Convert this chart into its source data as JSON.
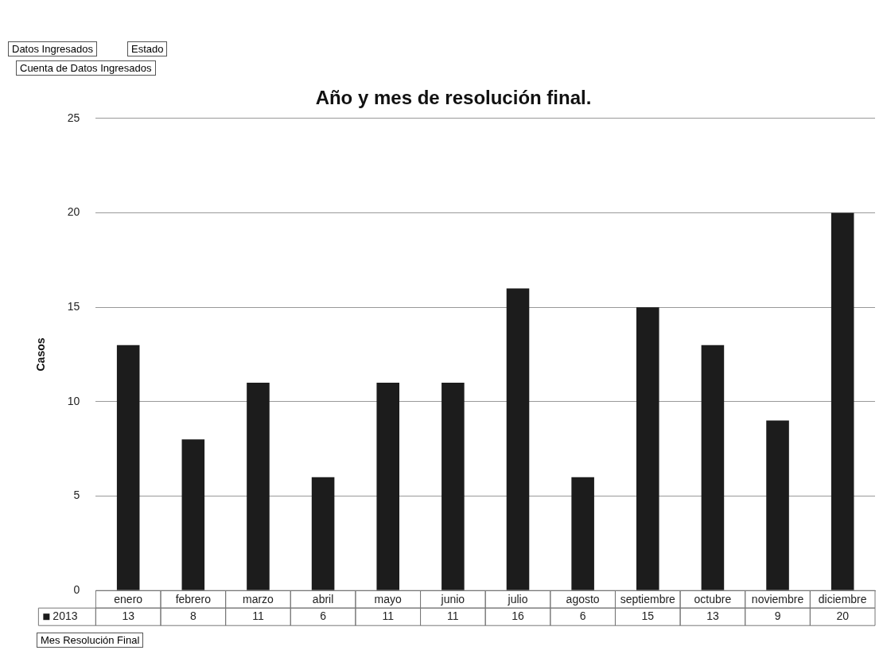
{
  "chart_data": {
    "type": "bar",
    "title": "Año y mes de resolución final.",
    "ylabel": "Casos",
    "xlabel": "Mes Resolución Final",
    "categories": [
      "enero",
      "febrero",
      "marzo",
      "abril",
      "mayo",
      "junio",
      "julio",
      "agosto",
      "septiembre",
      "octubre",
      "noviembre",
      "diciembre"
    ],
    "series": [
      {
        "name": "2013",
        "color": "#1c1c1c",
        "values": [
          13,
          8,
          11,
          6,
          11,
          11,
          16,
          6,
          15,
          13,
          9,
          20
        ]
      }
    ],
    "ylim": [
      0,
      25
    ],
    "yticks": [
      0,
      5,
      10,
      15,
      20,
      25
    ],
    "grid": "y",
    "legend": "bottom left",
    "data_labels": true,
    "annotations": [
      "Datos Ingresados",
      "Estado",
      "Cuenta de Datos Ingresados"
    ]
  }
}
